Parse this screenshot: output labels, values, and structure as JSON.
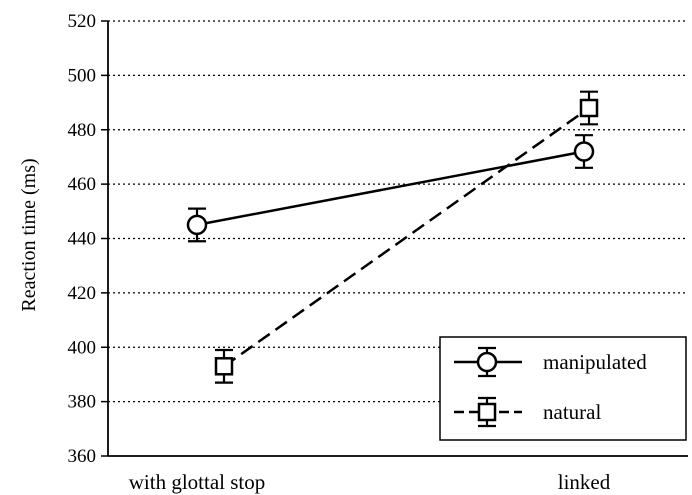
{
  "chart_data": {
    "type": "line",
    "title": "",
    "xlabel": "",
    "ylabel": "Reaction time (ms)",
    "categories": [
      "with glottal stop",
      "linked"
    ],
    "ylim": [
      360,
      520
    ],
    "yticks": [
      360,
      380,
      400,
      420,
      440,
      460,
      480,
      500,
      520
    ],
    "grid": "horizontal dotted",
    "legend_position": "bottom-right",
    "series": [
      {
        "name": "manipulated",
        "marker": "circle",
        "line_style": "solid",
        "values": [
          445,
          472
        ],
        "error": [
          6,
          6
        ]
      },
      {
        "name": "natural",
        "marker": "square",
        "line_style": "dashed",
        "values": [
          393,
          488
        ],
        "error": [
          6,
          6
        ]
      }
    ]
  }
}
